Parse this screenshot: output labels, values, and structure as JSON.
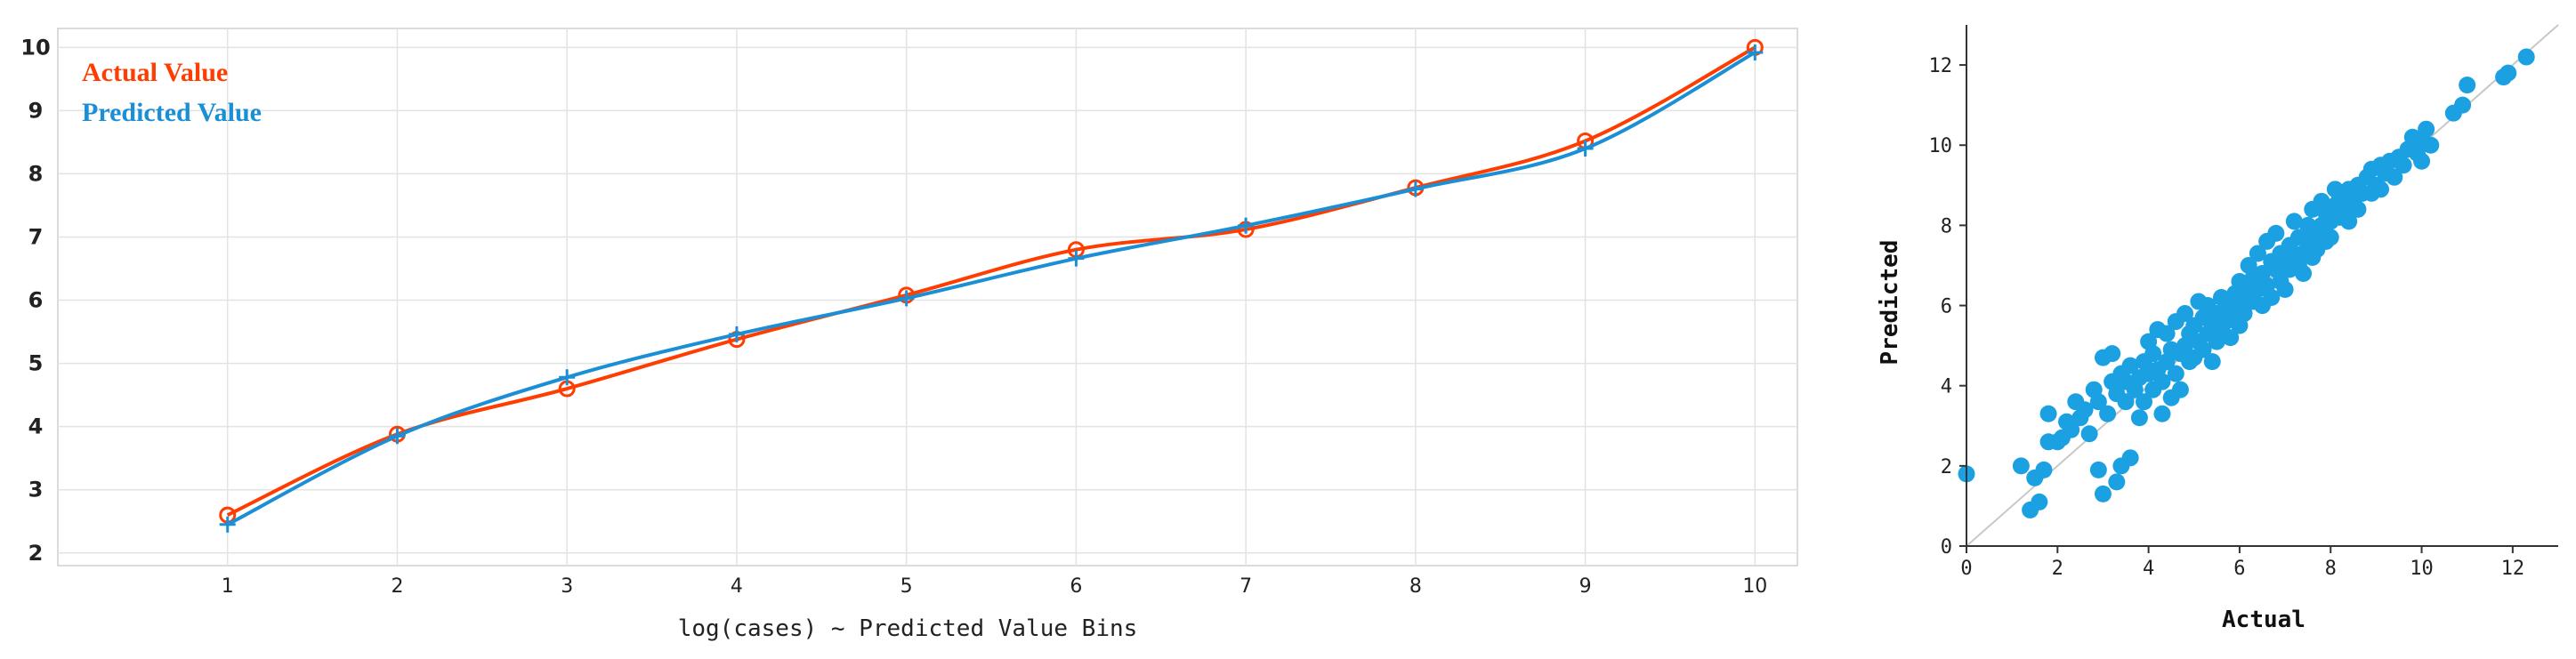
{
  "chart_data": [
    {
      "type": "line",
      "title": "",
      "xlabel": "log(cases) ~ Predicted Value Bins",
      "ylabel": "",
      "x": [
        1,
        2,
        3,
        4,
        5,
        6,
        7,
        8,
        9,
        10
      ],
      "xlim": [
        0,
        10.25
      ],
      "ylim": [
        1.8,
        10.3
      ],
      "yticks": [
        2,
        3,
        4,
        5,
        6,
        7,
        8,
        9,
        10
      ],
      "grid": true,
      "legend": "top-left",
      "series": [
        {
          "name": "Actual Value",
          "color": "#ff3d00",
          "marker": "circle",
          "values": [
            2.6,
            3.88,
            4.6,
            5.38,
            6.08,
            6.8,
            7.12,
            7.78,
            8.52,
            10.0
          ]
        },
        {
          "name": "Predicted Value",
          "color": "#1b8fd6",
          "marker": "plus",
          "values": [
            2.45,
            3.85,
            4.78,
            5.46,
            6.03,
            6.66,
            7.18,
            7.76,
            8.4,
            9.92
          ]
        }
      ]
    },
    {
      "type": "scatter",
      "title": "",
      "xlabel": "Actual",
      "ylabel": "Predicted",
      "xlim": [
        0,
        13
      ],
      "ylim": [
        0,
        13
      ],
      "xticks": [
        0,
        2,
        4,
        6,
        8,
        10,
        12
      ],
      "yticks": [
        0,
        2,
        4,
        6,
        8,
        10,
        12
      ],
      "grid": false,
      "reference_line": "y = x",
      "color": "#1ba0e2",
      "points": [
        [
          0.0,
          1.8
        ],
        [
          1.2,
          2.0
        ],
        [
          1.4,
          0.9
        ],
        [
          1.5,
          1.7
        ],
        [
          1.6,
          1.1
        ],
        [
          1.7,
          1.9
        ],
        [
          1.8,
          2.6
        ],
        [
          1.8,
          3.3
        ],
        [
          2.0,
          2.6
        ],
        [
          2.1,
          2.7
        ],
        [
          2.2,
          3.1
        ],
        [
          2.3,
          2.9
        ],
        [
          2.4,
          3.6
        ],
        [
          2.5,
          3.2
        ],
        [
          2.6,
          3.4
        ],
        [
          2.7,
          2.8
        ],
        [
          2.8,
          3.9
        ],
        [
          2.9,
          1.9
        ],
        [
          2.9,
          3.6
        ],
        [
          3.0,
          1.3
        ],
        [
          3.0,
          4.7
        ],
        [
          3.1,
          3.3
        ],
        [
          3.2,
          4.1
        ],
        [
          3.2,
          4.8
        ],
        [
          3.3,
          1.6
        ],
        [
          3.3,
          3.8
        ],
        [
          3.4,
          2.0
        ],
        [
          3.4,
          4.3
        ],
        [
          3.5,
          3.6
        ],
        [
          3.5,
          4.1
        ],
        [
          3.6,
          2.2
        ],
        [
          3.6,
          4.5
        ],
        [
          3.7,
          3.9
        ],
        [
          3.8,
          4.2
        ],
        [
          3.8,
          3.2
        ],
        [
          3.9,
          4.6
        ],
        [
          3.9,
          3.6
        ],
        [
          4.0,
          4.3
        ],
        [
          4.0,
          5.1
        ],
        [
          4.1,
          3.9
        ],
        [
          4.1,
          4.8
        ],
        [
          4.2,
          4.4
        ],
        [
          4.2,
          5.4
        ],
        [
          4.3,
          3.3
        ],
        [
          4.3,
          4.1
        ],
        [
          4.4,
          4.6
        ],
        [
          4.4,
          5.3
        ],
        [
          4.5,
          3.7
        ],
        [
          4.5,
          4.9
        ],
        [
          4.6,
          4.3
        ],
        [
          4.6,
          5.6
        ],
        [
          4.7,
          4.8
        ],
        [
          4.7,
          3.9
        ],
        [
          4.8,
          5.0
        ],
        [
          4.8,
          5.8
        ],
        [
          4.9,
          4.6
        ],
        [
          4.9,
          5.3
        ],
        [
          5.0,
          4.7
        ],
        [
          5.0,
          5.5
        ],
        [
          5.1,
          6.1
        ],
        [
          5.1,
          5.1
        ],
        [
          5.2,
          4.9
        ],
        [
          5.2,
          5.7
        ],
        [
          5.3,
          5.3
        ],
        [
          5.3,
          6.0
        ],
        [
          5.4,
          5.5
        ],
        [
          5.4,
          4.6
        ],
        [
          5.5,
          5.8
        ],
        [
          5.5,
          5.1
        ],
        [
          5.6,
          6.2
        ],
        [
          5.6,
          5.4
        ],
        [
          5.7,
          5.9
        ],
        [
          5.7,
          5.6
        ],
        [
          5.8,
          6.1
        ],
        [
          5.8,
          5.2
        ],
        [
          5.9,
          6.3
        ],
        [
          5.9,
          5.7
        ],
        [
          6.0,
          6.0
        ],
        [
          6.0,
          6.6
        ],
        [
          6.0,
          5.5
        ],
        [
          6.1,
          6.2
        ],
        [
          6.1,
          5.8
        ],
        [
          6.2,
          6.5
        ],
        [
          6.2,
          7.0
        ],
        [
          6.3,
          6.1
        ],
        [
          6.3,
          6.7
        ],
        [
          6.4,
          6.4
        ],
        [
          6.4,
          7.3
        ],
        [
          6.5,
          6.0
        ],
        [
          6.5,
          6.8
        ],
        [
          6.6,
          6.5
        ],
        [
          6.6,
          7.6
        ],
        [
          6.7,
          6.2
        ],
        [
          6.7,
          7.1
        ],
        [
          6.8,
          6.9
        ],
        [
          6.8,
          7.8
        ],
        [
          6.9,
          6.6
        ],
        [
          6.9,
          7.3
        ],
        [
          7.0,
          7.0
        ],
        [
          7.0,
          6.4
        ],
        [
          7.1,
          7.5
        ],
        [
          7.1,
          6.9
        ],
        [
          7.2,
          7.2
        ],
        [
          7.2,
          8.1
        ],
        [
          7.3,
          7.0
        ],
        [
          7.3,
          7.7
        ],
        [
          7.4,
          7.3
        ],
        [
          7.4,
          6.8
        ],
        [
          7.5,
          7.6
        ],
        [
          7.5,
          8.0
        ],
        [
          7.6,
          7.2
        ],
        [
          7.6,
          8.4
        ],
        [
          7.7,
          7.8
        ],
        [
          7.7,
          7.4
        ],
        [
          7.8,
          8.0
        ],
        [
          7.8,
          8.6
        ],
        [
          7.9,
          7.6
        ],
        [
          7.9,
          8.3
        ],
        [
          8.0,
          8.1
        ],
        [
          8.0,
          7.7
        ],
        [
          8.1,
          8.5
        ],
        [
          8.1,
          8.9
        ],
        [
          8.2,
          8.2
        ],
        [
          8.2,
          8.7
        ],
        [
          8.3,
          8.4
        ],
        [
          8.4,
          8.9
        ],
        [
          8.4,
          8.1
        ],
        [
          8.5,
          8.6
        ],
        [
          8.6,
          9.0
        ],
        [
          8.6,
          8.4
        ],
        [
          8.7,
          8.8
        ],
        [
          8.8,
          9.2
        ],
        [
          8.9,
          8.8
        ],
        [
          8.9,
          9.4
        ],
        [
          9.0,
          9.0
        ],
        [
          9.1,
          9.5
        ],
        [
          9.1,
          8.9
        ],
        [
          9.2,
          9.3
        ],
        [
          9.3,
          9.6
        ],
        [
          9.4,
          9.2
        ],
        [
          9.5,
          9.7
        ],
        [
          9.6,
          9.5
        ],
        [
          9.7,
          9.9
        ],
        [
          9.8,
          10.2
        ],
        [
          9.9,
          9.8
        ],
        [
          10.0,
          10.1
        ],
        [
          10.0,
          9.6
        ],
        [
          10.1,
          10.4
        ],
        [
          10.2,
          10.0
        ],
        [
          10.7,
          10.8
        ],
        [
          10.9,
          11.0
        ],
        [
          11.0,
          11.5
        ],
        [
          11.8,
          11.7
        ],
        [
          11.9,
          11.8
        ],
        [
          12.3,
          12.2
        ]
      ]
    }
  ]
}
